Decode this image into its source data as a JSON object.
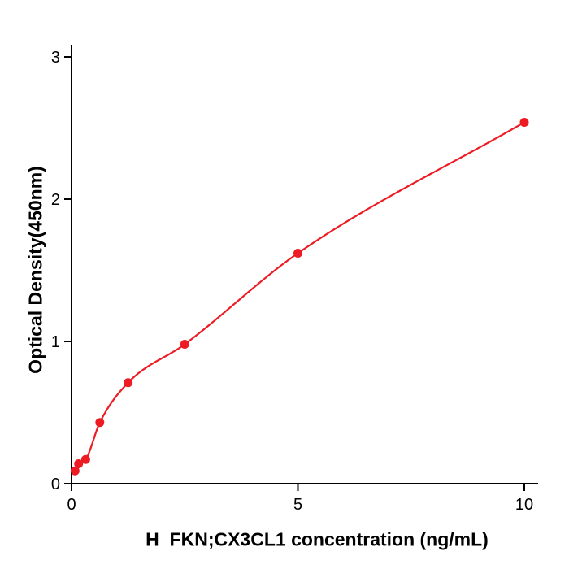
{
  "figure": {
    "background": "#ffffff"
  },
  "chart_data": {
    "type": "scatter",
    "title": "",
    "xlabel": "H  FKN;CX3CL1 concentration (ng/mL)",
    "ylabel": "Optical Density(450nm)",
    "x": [
      0.078,
      0.156,
      0.3125,
      0.625,
      1.25,
      2.5,
      5,
      10
    ],
    "y": [
      0.09,
      0.14,
      0.17,
      0.43,
      0.71,
      0.98,
      1.62,
      2.54
    ],
    "curve_fit": "smooth monotone curve through points",
    "xlim": [
      0,
      10.3
    ],
    "ylim": [
      0,
      3.1
    ],
    "x_ticks": [
      "0",
      "5",
      "10"
    ],
    "y_ticks": [
      "0",
      "1",
      "2",
      "3"
    ],
    "x_tick_values": [
      0,
      5,
      10
    ],
    "y_tick_values": [
      0,
      1,
      2,
      3
    ],
    "grid": false,
    "legend": null,
    "point_color": "#ed1c24",
    "curve_color": "#ed1c24",
    "axis_color": "#000000"
  }
}
